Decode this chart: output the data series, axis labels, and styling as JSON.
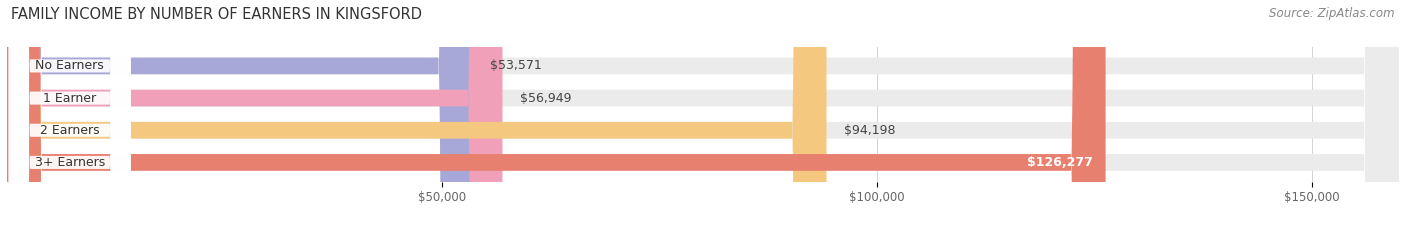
{
  "title": "FAMILY INCOME BY NUMBER OF EARNERS IN KINGSFORD",
  "source": "Source: ZipAtlas.com",
  "categories": [
    "No Earners",
    "1 Earner",
    "2 Earners",
    "3+ Earners"
  ],
  "values": [
    53571,
    56949,
    94198,
    126277
  ],
  "bar_colors": [
    "#a8a8d8",
    "#f0a0b8",
    "#f5c880",
    "#e88070"
  ],
  "label_colors": [
    "#333333",
    "#333333",
    "#333333",
    "#ffffff"
  ],
  "bar_bg_color": "#ebebeb",
  "background_color": "#ffffff",
  "xlim": [
    0,
    160000
  ],
  "xticks": [
    50000,
    100000,
    150000
  ],
  "xtick_labels": [
    "$50,000",
    "$100,000",
    "$150,000"
  ],
  "title_fontsize": 10.5,
  "source_fontsize": 8.5,
  "tick_fontsize": 8.5,
  "bar_label_fontsize": 9,
  "cat_label_fontsize": 9,
  "value_labels": [
    "$53,571",
    "$56,949",
    "$94,198",
    "$126,277"
  ]
}
